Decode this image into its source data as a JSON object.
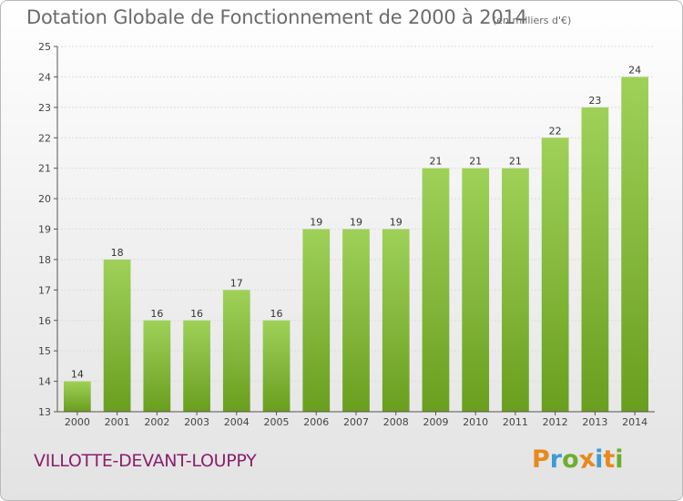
{
  "title": "Dotation Globale de Fonctionnement de 2000 à 2014",
  "subtitle": "(en milliers d'€)",
  "commune": "VILLOTTE-DEVANT-LOUPPY",
  "logo": {
    "letters": [
      "P",
      "r",
      "o",
      "x",
      "i",
      "t",
      "i"
    ],
    "colors": [
      "#e8891c",
      "#3c9bd6",
      "#6cae2f",
      "#e8891c",
      "#3c9bd6",
      "#e8891c",
      "#6cae2f"
    ]
  },
  "colors": {
    "bar_top": "#9fd159",
    "bar_bottom": "#6a9e1e",
    "grid": "#dcdcdc",
    "axis": "#555555",
    "title": "#6b6b6b",
    "commune": "#8a1f6d"
  },
  "chart_data": {
    "type": "bar",
    "title": "Dotation Globale de Fonctionnement de 2000 à 2014",
    "unit": "(en milliers d'€)",
    "categories": [
      "2000",
      "2001",
      "2002",
      "2003",
      "2004",
      "2005",
      "2006",
      "2007",
      "2008",
      "2009",
      "2010",
      "2011",
      "2012",
      "2013",
      "2014"
    ],
    "values": [
      14,
      18,
      16,
      16,
      17,
      16,
      19,
      19,
      19,
      21,
      21,
      21,
      22,
      23,
      24
    ],
    "ylim": [
      13,
      25
    ],
    "yticks": [
      "13",
      "14",
      "15",
      "16",
      "17",
      "18",
      "19",
      "20",
      "21",
      "22",
      "23",
      "24",
      "25"
    ],
    "grid": true,
    "xlabel": "",
    "ylabel": ""
  }
}
